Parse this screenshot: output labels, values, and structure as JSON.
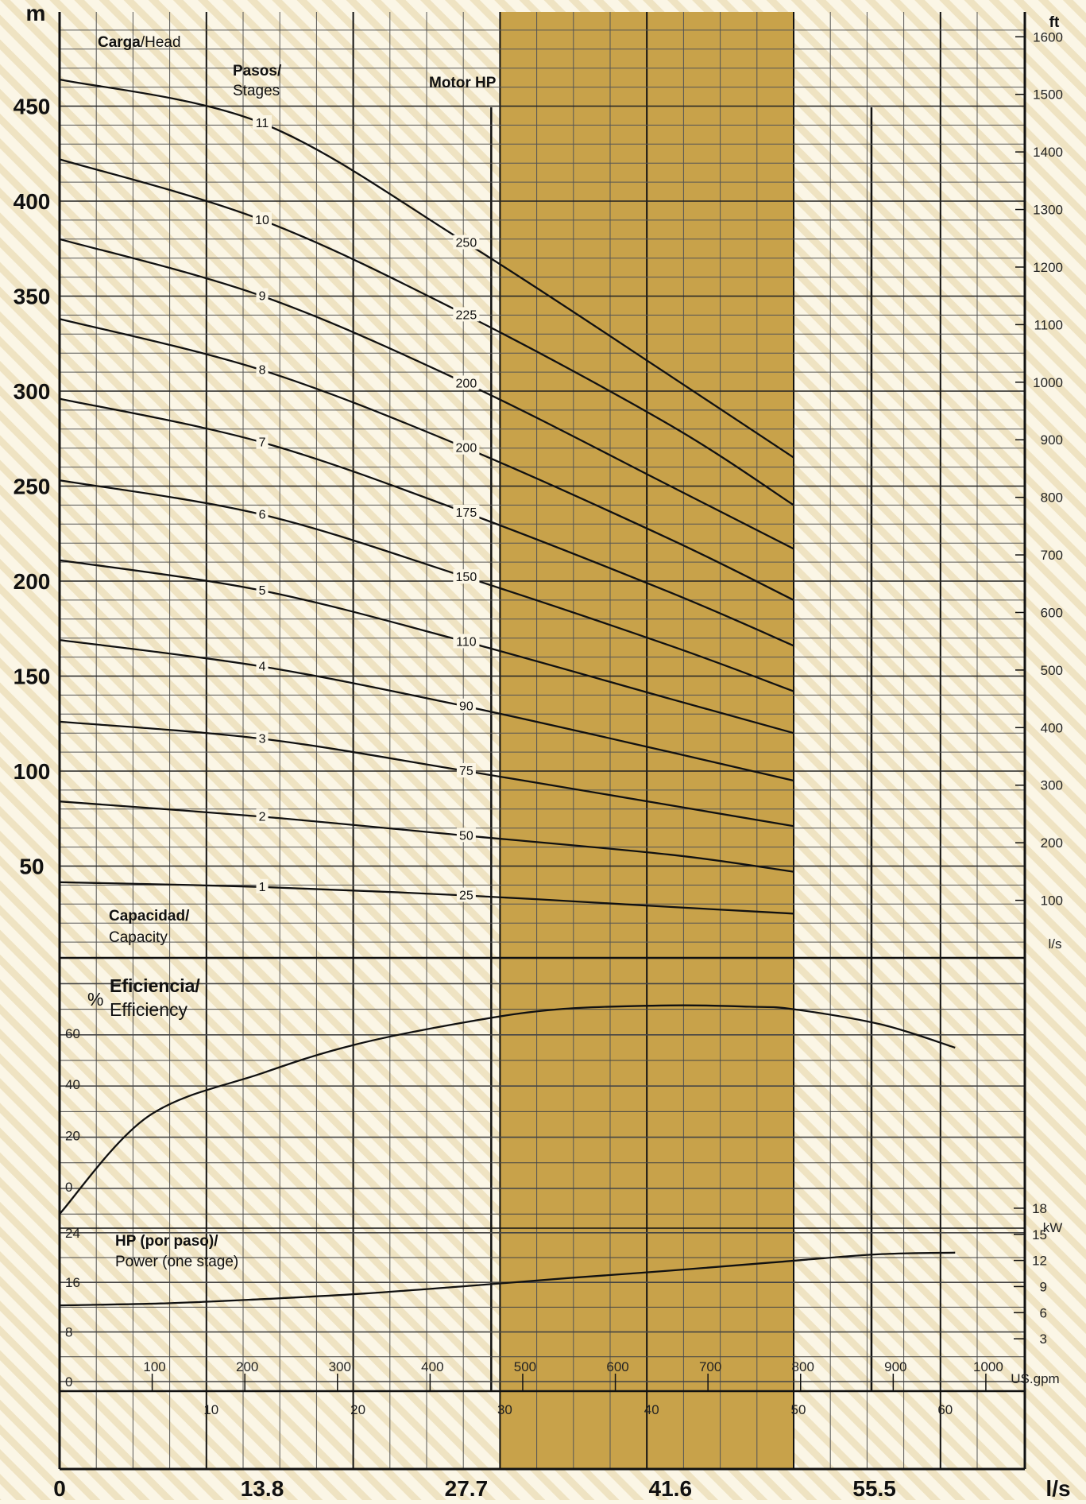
{
  "chart_data": [
    {
      "type": "line",
      "panel": "head",
      "title_bold": "Carga",
      "title_rest": "/Head",
      "stages_label_bold": "Pasos/",
      "stages_label_rest": "Stages",
      "motor_label": "Motor HP",
      "capacity_label_bold": "Capacidad/",
      "capacity_label_rest": "Capacity",
      "y_unit_left": "m",
      "y_unit_right": "ft",
      "right_axis_note": "l/s",
      "y_ticks_left": [
        50,
        100,
        150,
        200,
        250,
        300,
        350,
        400,
        450
      ],
      "y_ticks_right": [
        100,
        200,
        300,
        400,
        500,
        600,
        700,
        800,
        900,
        1000,
        1100,
        1200,
        1300,
        1400,
        1500,
        1600
      ],
      "ylim_m": [
        0,
        500
      ],
      "x_unit": "l/s",
      "xlim": [
        0,
        65
      ],
      "highlight_band_x": [
        30,
        50
      ],
      "series": [
        {
          "stage": "1",
          "x": [
            0,
            13.8,
            27.7,
            41.6,
            50
          ],
          "y": [
            41.5,
            39.0,
            34.5,
            28.5,
            25.0
          ],
          "hp_label": "25"
        },
        {
          "stage": "2",
          "x": [
            0,
            13.8,
            27.7,
            41.6,
            50
          ],
          "y": [
            84,
            76,
            66,
            56,
            47
          ],
          "hp_label": "50"
        },
        {
          "stage": "3",
          "x": [
            0,
            13.8,
            27.7,
            41.6,
            50
          ],
          "y": [
            126,
            117,
            100,
            82,
            71
          ],
          "hp_label": "75"
        },
        {
          "stage": "4",
          "x": [
            0,
            13.8,
            27.7,
            41.6,
            50
          ],
          "y": [
            169,
            155,
            134,
            110,
            95
          ],
          "hp_label": "90"
        },
        {
          "stage": "5",
          "x": [
            0,
            13.8,
            27.7,
            41.6,
            50
          ],
          "y": [
            211,
            195,
            168,
            138,
            120
          ],
          "hp_label": "110"
        },
        {
          "stage": "6",
          "x": [
            0,
            13.8,
            27.7,
            41.6,
            50
          ],
          "y": [
            253,
            235,
            202,
            166,
            142
          ],
          "hp_label": "150"
        },
        {
          "stage": "7",
          "x": [
            0,
            13.8,
            27.7,
            41.6,
            50
          ],
          "y": [
            296,
            273,
            236,
            194,
            166
          ],
          "hp_label": "175"
        },
        {
          "stage": "8",
          "x": [
            0,
            13.8,
            27.7,
            41.6,
            50
          ],
          "y": [
            338,
            311,
            270,
            222,
            190
          ],
          "hp_label": "200"
        },
        {
          "stage": "9",
          "x": [
            0,
            13.8,
            27.7,
            41.6,
            50
          ],
          "y": [
            380,
            350,
            304,
            250,
            217
          ],
          "hp_label": "200"
        },
        {
          "stage": "10",
          "x": [
            0,
            13.8,
            27.7,
            41.6,
            50
          ],
          "y": [
            422,
            390,
            340,
            282,
            240
          ],
          "hp_label": "225"
        },
        {
          "stage": "11",
          "x": [
            0,
            13.8,
            27.7,
            41.6,
            50
          ],
          "y": [
            464,
            441,
            378,
            308,
            265
          ],
          "hp_label": "250"
        }
      ]
    },
    {
      "type": "line",
      "panel": "efficiency",
      "title_bold": "Eficiencia/",
      "title_rest": "Efficiency",
      "y_unit": "%",
      "y_ticks": [
        0,
        20,
        40,
        60
      ],
      "series": [
        {
          "x": [
            0,
            6,
            13.8,
            20,
            27.7,
            34,
            41.6,
            47,
            50,
            56,
            61
          ],
          "y": [
            -10,
            28,
            45,
            56,
            65,
            70,
            71.5,
            71,
            70,
            64,
            55
          ]
        }
      ]
    },
    {
      "type": "line",
      "panel": "power",
      "title_bold": "HP (por paso)/",
      "title_rest": "Power (one stage)",
      "y_ticks_left": [
        0,
        8,
        16,
        24
      ],
      "y_unit_right": "kW",
      "y_ticks_right": [
        3,
        6,
        9,
        12,
        15,
        18
      ],
      "series": [
        {
          "x": [
            0,
            6.9,
            13.8,
            20.8,
            27.7,
            34.7,
            41.6,
            48.5,
            55.5,
            61
          ],
          "y": [
            12.3,
            12.6,
            13.3,
            14.2,
            15.4,
            16.7,
            17.9,
            19.2,
            20.5,
            20.8
          ]
        }
      ]
    }
  ],
  "x_axes": {
    "gpm_unit": "US.gpm",
    "gpm_ticks": [
      100,
      200,
      300,
      400,
      500,
      600,
      700,
      800,
      900,
      1000
    ],
    "ls_small_ticks": [
      10,
      20,
      30,
      40,
      50,
      60
    ],
    "bottom_ticks": [
      "0",
      "13.8",
      "27.7",
      "41.6",
      "55.5"
    ],
    "bottom_unit": "l/s"
  },
  "colors": {
    "background": "#fbf6e6",
    "stripe": "#ede1be",
    "band": "#c8a24a",
    "grid": "#2a2a2a",
    "curve": "#111111"
  }
}
